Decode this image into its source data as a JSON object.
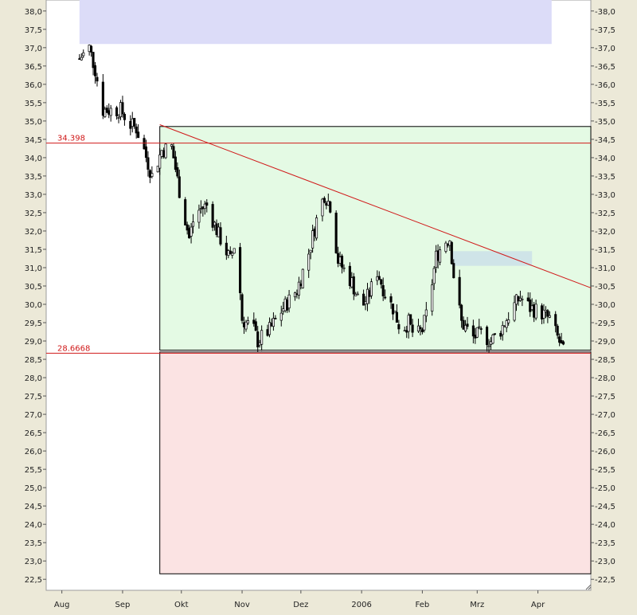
{
  "chart_data": {
    "type": "candlestick",
    "title": "",
    "xlabel": "",
    "ylabel": "",
    "ylim": [
      22.2,
      38.3
    ],
    "y_ticks": [
      "22,5",
      "23,0",
      "23,5",
      "24,0",
      "24,5",
      "25,0",
      "25,5",
      "26,0",
      "26,5",
      "27,0",
      "27,5",
      "28,0",
      "28,5",
      "29,0",
      "29,5",
      "30,0",
      "30,5",
      "31,0",
      "31,5",
      "32,0",
      "32,5",
      "33,0",
      "33,5",
      "34,0",
      "34,5",
      "35,0",
      "35,5",
      "36,0",
      "36,5",
      "37,0",
      "37,5",
      "38,0"
    ],
    "x_range": [
      "2005-07-24",
      "2006-04-28"
    ],
    "x_ticks": [
      {
        "date": "2005-08-01",
        "label": "Aug"
      },
      {
        "date": "2005-09-01",
        "label": "Sep"
      },
      {
        "date": "2005-10-01",
        "label": "Okt"
      },
      {
        "date": "2005-11-01",
        "label": "Nov"
      },
      {
        "date": "2005-12-01",
        "label": "Dez"
      },
      {
        "date": "2006-01-01",
        "label": "2006"
      },
      {
        "date": "2006-02-01",
        "label": "Feb"
      },
      {
        "date": "2006-03-01",
        "label": "Mrz"
      },
      {
        "date": "2006-04-01",
        "label": "Apr"
      }
    ],
    "reference_lines": [
      {
        "value": 34.398,
        "label": "34.398",
        "color": "#d01818"
      },
      {
        "value": 28.6668,
        "label": "28.6668",
        "color": "#d01818"
      }
    ],
    "trendline": {
      "from": {
        "date": "2005-09-20",
        "value": 34.9
      },
      "to": {
        "date": "2006-04-28",
        "value": 30.45
      },
      "color": "#d01818"
    },
    "zones": [
      {
        "from": "2005-08-10",
        "to": "2006-04-08",
        "y0": 37.1,
        "y1": 38.3,
        "fill": "#dcdcf8",
        "stroke": "none"
      },
      {
        "from": "2005-09-20",
        "to": "2006-04-28",
        "y0": 28.75,
        "y1": 34.85,
        "fill": "#e4fae4",
        "stroke": "#000000"
      },
      {
        "from": "2005-09-20",
        "to": "2006-04-28",
        "y0": 22.65,
        "y1": 28.7,
        "fill": "#fbe3e3",
        "stroke": "#000000"
      },
      {
        "from": "2006-02-16",
        "to": "2006-03-29",
        "y0": 31.05,
        "y1": 31.45,
        "fill": "#cfe4e8",
        "stroke": "none"
      }
    ],
    "anchors": [
      [
        "2005-08-10",
        36.7
      ],
      [
        "2005-08-15",
        37.0
      ],
      [
        "2005-08-18",
        36.4
      ],
      [
        "2005-08-22",
        35.3
      ],
      [
        "2005-08-31",
        35.3
      ],
      [
        "2005-09-05",
        34.9
      ],
      [
        "2005-09-08",
        34.8
      ],
      [
        "2005-09-12",
        34.2
      ],
      [
        "2005-09-16",
        33.5
      ],
      [
        "2005-09-21",
        34.2
      ],
      [
        "2005-09-26",
        34.3
      ],
      [
        "2005-10-01",
        32.8
      ],
      [
        "2005-10-05",
        31.8
      ],
      [
        "2005-10-08",
        32.5
      ],
      [
        "2005-10-14",
        32.7
      ],
      [
        "2005-10-20",
        31.9
      ],
      [
        "2005-10-26",
        31.2
      ],
      [
        "2005-10-29",
        31.8
      ],
      [
        "2005-11-01",
        29.6
      ],
      [
        "2005-11-07",
        29.3
      ],
      [
        "2005-11-09",
        29.0
      ],
      [
        "2005-11-15",
        29.3
      ],
      [
        "2005-11-22",
        29.9
      ],
      [
        "2005-11-29",
        30.4
      ],
      [
        "2005-12-05",
        31.4
      ],
      [
        "2005-12-09",
        32.3
      ],
      [
        "2005-12-13",
        33.0
      ],
      [
        "2005-12-16",
        32.7
      ],
      [
        "2005-12-20",
        31.2
      ],
      [
        "2005-12-27",
        30.6
      ],
      [
        "2006-01-01",
        29.9
      ],
      [
        "2006-01-05",
        30.3
      ],
      [
        "2006-01-09",
        30.9
      ],
      [
        "2006-01-13",
        30.3
      ],
      [
        "2006-01-17",
        29.9
      ],
      [
        "2006-01-21",
        29.3
      ],
      [
        "2006-01-25",
        29.5
      ],
      [
        "2006-01-28",
        29.1
      ],
      [
        "2006-02-01",
        29.3
      ],
      [
        "2006-02-04",
        29.9
      ],
      [
        "2006-02-08",
        31.3
      ],
      [
        "2006-02-12",
        31.7
      ],
      [
        "2006-02-15",
        31.8
      ],
      [
        "2006-02-17",
        30.8
      ],
      [
        "2006-02-21",
        29.5
      ],
      [
        "2006-02-27",
        29.1
      ],
      [
        "2006-03-03",
        29.2
      ],
      [
        "2006-03-08",
        29.0
      ],
      [
        "2006-03-13",
        29.3
      ],
      [
        "2006-03-19",
        29.9
      ],
      [
        "2006-03-23",
        30.2
      ],
      [
        "2006-03-28",
        29.9
      ],
      [
        "2006-04-02",
        29.8
      ],
      [
        "2006-04-07",
        29.6
      ],
      [
        "2006-04-11",
        29.1
      ],
      [
        "2006-04-14",
        28.7
      ],
      [
        "2006-04-16",
        28.2
      ]
    ]
  }
}
